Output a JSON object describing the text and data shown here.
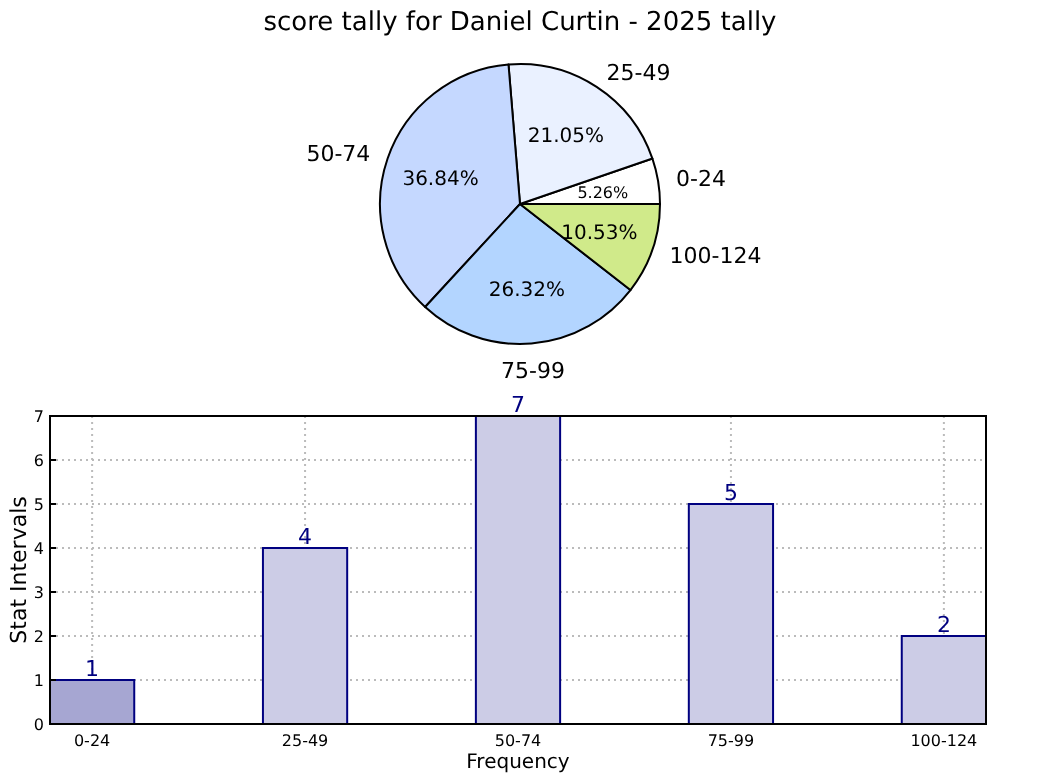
{
  "chart_data": [
    {
      "type": "pie",
      "title": "score tally for Daniel Curtin - 2025 tally",
      "categories": [
        "0-24",
        "25-49",
        "50-74",
        "75-99",
        "100-124"
      ],
      "values": [
        5.26,
        21.05,
        36.84,
        26.32,
        10.53
      ],
      "colors": [
        "#ffffff",
        "#eaf1ff",
        "#c5d8ff",
        "#b3d5ff",
        "#d0ea8a"
      ],
      "value_labels": [
        "5.26%",
        "21.05%",
        "36.84%",
        "26.32%",
        "10.53%"
      ]
    },
    {
      "type": "bar",
      "categories": [
        "0-24",
        "25-49",
        "50-74",
        "75-99",
        "100-124"
      ],
      "values": [
        1,
        4,
        7,
        5,
        2
      ],
      "colors": [
        "#a6a6d2",
        "#ccccE6",
        "#ccccE6",
        "#ccccE6",
        "#ccccE6"
      ],
      "xlabel": "Frequency",
      "ylabel": "Stat Intervals",
      "ylim": [
        0,
        7
      ],
      "yticks": [
        0,
        1,
        2,
        3,
        4,
        5,
        6,
        7
      ],
      "grid": true,
      "data_labels": true
    }
  ]
}
